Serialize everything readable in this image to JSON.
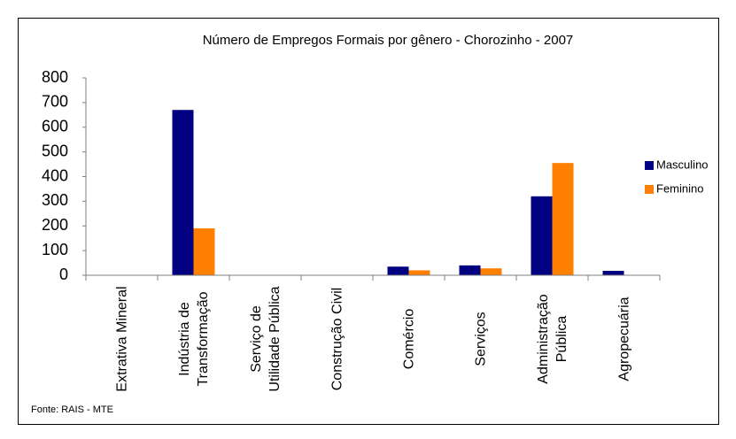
{
  "chart_data": {
    "type": "bar",
    "title": "Número de Empregos Formais por gênero - Chorozinho - 2007",
    "categories": [
      "Extrativa Mineral",
      "Indústria de Transformação",
      "Serviço de Utilidade Pública",
      "Construção Civil",
      "Comércio",
      "Serviços",
      "Administração Pública",
      "Agropecuária"
    ],
    "series": [
      {
        "name": "Masculino",
        "color": "#000080",
        "values": [
          0,
          670,
          0,
          0,
          35,
          40,
          320,
          18
        ]
      },
      {
        "name": "Feminino",
        "color": "#ff8000",
        "values": [
          0,
          190,
          0,
          0,
          20,
          28,
          455,
          0
        ]
      }
    ],
    "ylim": [
      0,
      800
    ],
    "yticks": [
      0,
      100,
      200,
      300,
      400,
      500,
      600,
      700,
      800
    ],
    "legend": "right",
    "source": "Fonte: RAIS - MTE"
  }
}
